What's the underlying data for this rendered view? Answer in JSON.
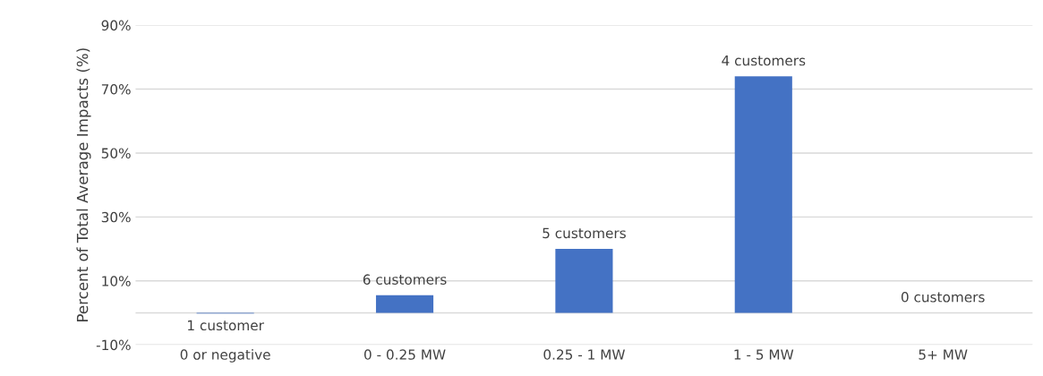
{
  "chart_data": {
    "type": "bar",
    "ylabel": "Percent of Total Average Impacts (%)",
    "categories": [
      "0 or negative",
      "0 - 0.25 MW",
      "0.25 - 1 MW",
      "1 - 5 MW",
      "5+ MW"
    ],
    "values": [
      -0.2,
      5.5,
      20,
      74,
      0
    ],
    "annotations": [
      {
        "text": "1 customer",
        "x": "0 or negative",
        "y": -0.2
      },
      {
        "text": "6 customers",
        "x": "0 - 0.25 MW",
        "y": 5.5
      },
      {
        "text": "5 customers",
        "x": "0.25 - 1 MW",
        "y": 20
      },
      {
        "text": "4 customers",
        "x": "1 - 5 MW",
        "y": 74
      },
      {
        "text": "0 customers",
        "x": "5+ MW",
        "y": 0
      }
    ],
    "color": "#4472c4",
    "ylim": [
      -10,
      90
    ],
    "yticks": [
      {
        "value": -10,
        "label": "-10%"
      },
      {
        "value": 0,
        "label": null
      },
      {
        "value": 10,
        "label": "10%"
      },
      {
        "value": 30,
        "label": "30%"
      },
      {
        "value": 50,
        "label": "50%"
      },
      {
        "value": 70,
        "label": "70%"
      },
      {
        "value": 90,
        "label": "90%"
      }
    ],
    "grid": "y"
  }
}
